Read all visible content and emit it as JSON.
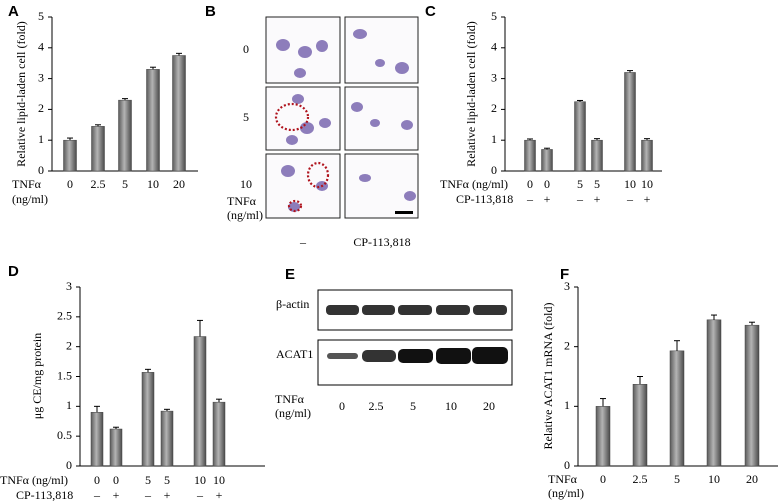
{
  "chart_data": [
    {
      "type": "bar",
      "panel": "A",
      "ylabel": "Relative lipid-laden cell (fold)",
      "categories": [
        "0",
        "2.5",
        "5",
        "10",
        "20"
      ],
      "values": [
        1.0,
        1.45,
        2.3,
        3.3,
        3.75
      ],
      "errors": [
        0.07,
        0.05,
        0.05,
        0.07,
        0.07
      ],
      "xlabel": [
        "TNFα",
        "(ng/ml)"
      ],
      "ylim": [
        0,
        5
      ],
      "yticks": [
        0,
        1,
        2,
        3,
        4,
        5
      ],
      "color": "#b4b4b4"
    },
    {
      "type": "bar",
      "panel": "C",
      "ylabel": "Relative lipid-laden cell (fold)",
      "categories": [
        "0",
        "0",
        "5",
        "5",
        "10",
        "10"
      ],
      "categories2": [
        "–",
        "+",
        "–",
        "+",
        "–",
        "+"
      ],
      "values": [
        1.0,
        0.7,
        2.25,
        1.0,
        3.2,
        1.0
      ],
      "errors": [
        0.04,
        0.04,
        0.04,
        0.05,
        0.06,
        0.05
      ],
      "xlabel": [
        "TNFα (ng/ml)",
        "CP-113,818"
      ],
      "ylim": [
        0,
        5
      ],
      "yticks": [
        0,
        1,
        2,
        3,
        4,
        5
      ],
      "color": "#b4b4b4"
    },
    {
      "type": "bar",
      "panel": "D",
      "ylabel": "μg CE/mg protein",
      "categories": [
        "0",
        "0",
        "5",
        "5",
        "10",
        "10"
      ],
      "categories2": [
        "–",
        "+",
        "–",
        "+",
        "–",
        "+"
      ],
      "values": [
        0.9,
        0.62,
        1.57,
        0.92,
        2.17,
        1.07
      ],
      "errors": [
        0.1,
        0.03,
        0.05,
        0.03,
        0.27,
        0.05
      ],
      "xlabel": [
        "TNFα (ng/ml)",
        "CP-113,818"
      ],
      "ylim": [
        0,
        3
      ],
      "yticks": [
        0,
        0.5,
        1,
        1.5,
        2,
        2.5,
        3
      ],
      "color": "#b4b4b4"
    },
    {
      "type": "bar",
      "panel": "F",
      "ylabel": "Relative ACAT1 mRNA (fold)",
      "categories": [
        "0",
        "2.5",
        "5",
        "10",
        "20"
      ],
      "values": [
        1.0,
        1.37,
        1.93,
        2.45,
        2.36
      ],
      "errors": [
        0.13,
        0.13,
        0.17,
        0.08,
        0.05
      ],
      "xlabel": [
        "TNFα",
        "(ng/ml)"
      ],
      "ylim": [
        0,
        3
      ],
      "yticks": [
        0,
        1,
        2,
        3
      ],
      "color": "#b4b4b4"
    }
  ],
  "panel_b": {
    "label": "B",
    "rows": [
      "0",
      "5",
      "10"
    ],
    "xlabel": [
      "TNFα",
      "(ng/ml)"
    ],
    "columns": [
      "–",
      "CP-113,818"
    ]
  },
  "panel_e": {
    "label": "E",
    "bands": [
      "β-actin",
      "ACAT1"
    ],
    "xlabel": [
      "TNFα",
      "(ng/ml)"
    ],
    "categories": [
      "0",
      "2.5",
      "5",
      "10",
      "20"
    ]
  }
}
